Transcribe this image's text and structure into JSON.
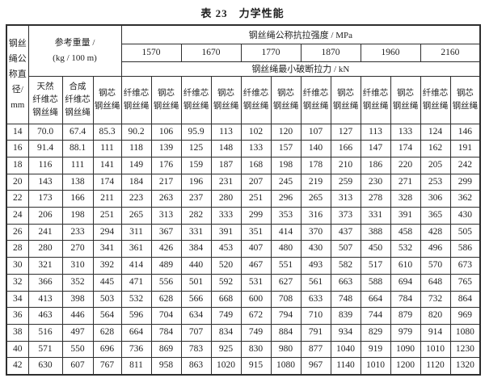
{
  "page": {
    "background": "#ffffff",
    "border_color": "#2e2e2e",
    "text_color": "#1f1f1f"
  },
  "title": {
    "prefix": "表 23",
    "text": "力学性能"
  },
  "table": {
    "header": {
      "diameter_label": "钢丝\n绳公\n称直\n径/\nmm",
      "weight_label": "参考重量 /\n(kg / 100 m)",
      "strength_label": "钢丝绳公称抗拉强度 / MPa",
      "breaking_label": "钢丝绳最小破断拉力 / kN",
      "grades": [
        "1570",
        "1670",
        "1770",
        "1870",
        "1960",
        "2160"
      ],
      "weight_subheads": [
        "天然\n纤维芯\n钢丝绳",
        "合成\n纤维芯\n钢丝绳",
        "钢芯\n钢丝绳"
      ],
      "force_subheads": [
        "纤维芯\n钢丝绳",
        "钢芯\n钢丝绳"
      ]
    },
    "rows": [
      [
        "14",
        "70.0",
        "67.4",
        "85.3",
        "90.2",
        "106",
        "95.9",
        "113",
        "102",
        "120",
        "107",
        "127",
        "113",
        "133",
        "124",
        "146"
      ],
      [
        "16",
        "91.4",
        "88.1",
        "111",
        "118",
        "139",
        "125",
        "148",
        "133",
        "157",
        "140",
        "166",
        "147",
        "174",
        "162",
        "191"
      ],
      [
        "18",
        "116",
        "111",
        "141",
        "149",
        "176",
        "159",
        "187",
        "168",
        "198",
        "178",
        "210",
        "186",
        "220",
        "205",
        "242"
      ],
      [
        "20",
        "143",
        "138",
        "174",
        "184",
        "217",
        "196",
        "231",
        "207",
        "245",
        "219",
        "259",
        "230",
        "271",
        "253",
        "299"
      ],
      [
        "22",
        "173",
        "166",
        "211",
        "223",
        "263",
        "237",
        "280",
        "251",
        "296",
        "265",
        "313",
        "278",
        "328",
        "306",
        "362"
      ],
      [
        "24",
        "206",
        "198",
        "251",
        "265",
        "313",
        "282",
        "333",
        "299",
        "353",
        "316",
        "373",
        "331",
        "391",
        "365",
        "430"
      ],
      [
        "26",
        "241",
        "233",
        "294",
        "311",
        "367",
        "331",
        "391",
        "351",
        "414",
        "370",
        "437",
        "388",
        "458",
        "428",
        "505"
      ],
      [
        "28",
        "280",
        "270",
        "341",
        "361",
        "426",
        "384",
        "453",
        "407",
        "480",
        "430",
        "507",
        "450",
        "532",
        "496",
        "586"
      ],
      [
        "30",
        "321",
        "310",
        "392",
        "414",
        "489",
        "440",
        "520",
        "467",
        "551",
        "493",
        "582",
        "517",
        "610",
        "570",
        "673"
      ],
      [
        "32",
        "366",
        "352",
        "445",
        "471",
        "556",
        "501",
        "592",
        "531",
        "627",
        "561",
        "663",
        "588",
        "694",
        "648",
        "765"
      ],
      [
        "34",
        "413",
        "398",
        "503",
        "532",
        "628",
        "566",
        "668",
        "600",
        "708",
        "633",
        "748",
        "664",
        "784",
        "732",
        "864"
      ],
      [
        "36",
        "463",
        "446",
        "564",
        "596",
        "704",
        "634",
        "749",
        "672",
        "794",
        "710",
        "839",
        "744",
        "879",
        "820",
        "969"
      ],
      [
        "38",
        "516",
        "497",
        "628",
        "664",
        "784",
        "707",
        "834",
        "749",
        "884",
        "791",
        "934",
        "829",
        "979",
        "914",
        "1080"
      ],
      [
        "40",
        "571",
        "550",
        "696",
        "736",
        "869",
        "783",
        "925",
        "830",
        "980",
        "877",
        "1040",
        "919",
        "1090",
        "1010",
        "1230"
      ],
      [
        "42",
        "630",
        "607",
        "767",
        "811",
        "958",
        "863",
        "1020",
        "915",
        "1080",
        "967",
        "1140",
        "1010",
        "1200",
        "1120",
        "1320"
      ]
    ]
  }
}
